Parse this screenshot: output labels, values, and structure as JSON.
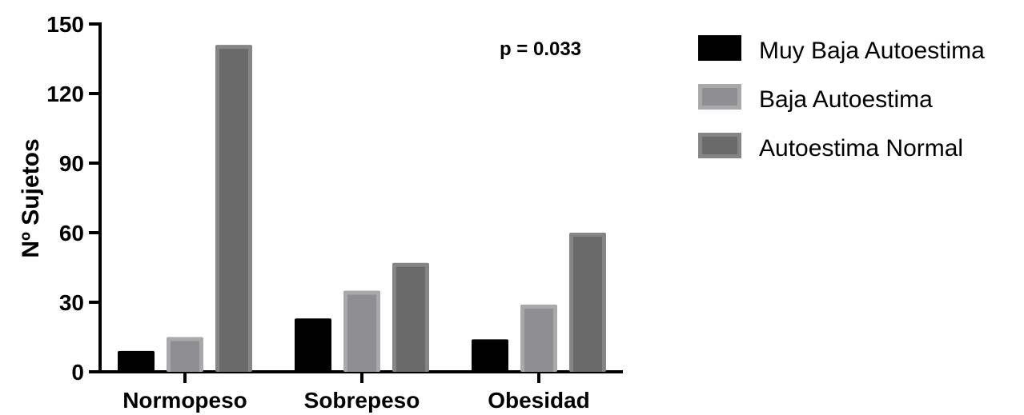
{
  "chart_data": {
    "type": "bar",
    "categories": [
      "Normopeso",
      "Sobrepeso",
      "Obesidad"
    ],
    "series": [
      {
        "name": "Muy Baja Autoestima",
        "values": [
          9,
          23,
          14
        ],
        "color": "#000000",
        "inner_color": "#000000"
      },
      {
        "name": "Baja Autoestima",
        "values": [
          15,
          35,
          29
        ],
        "color": "#a9a9ab",
        "inner_color": "#8f8f93"
      },
      {
        "name": "Autoestima Normal",
        "values": [
          141,
          47,
          60
        ],
        "color": "#858585",
        "inner_color": "#6a6a6a"
      }
    ],
    "ylabel": "Nº Sujetos",
    "xlabel": "",
    "ylim": [
      0,
      150
    ],
    "yticks": [
      "0",
      "30",
      "60",
      "90",
      "120",
      "150"
    ],
    "annotation": "p = 0.033",
    "legend_position": "right",
    "grid": false
  }
}
